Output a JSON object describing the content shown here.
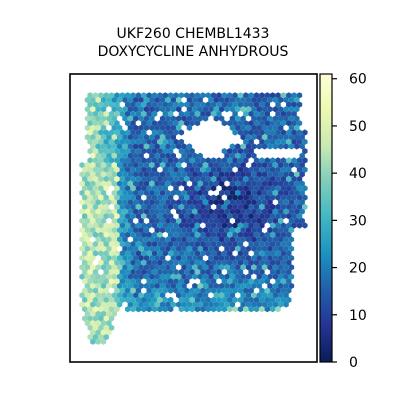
{
  "chart_data": {
    "type": "heatmap",
    "title_lines": [
      "UKF260 CHEMBL1433",
      "DOXYCYCLINE ANHYDROUS"
    ],
    "colorbar": {
      "colormap": "YlGnBu_r",
      "vmin": 0,
      "vmax": 61,
      "ticks": [
        0,
        10,
        20,
        30,
        40,
        50,
        60
      ],
      "tick_labels": [
        "0",
        "10",
        "20",
        "30",
        "40",
        "50",
        "60"
      ],
      "colors": [
        "#081d58",
        "#253494",
        "#225ea8",
        "#1d91c0",
        "#41b6c4",
        "#7fcdbb",
        "#c7e9b4",
        "#edf8b1",
        "#ffffd9"
      ]
    },
    "spatial_summary": {
      "plot": "hexbin spatial expression map",
      "axes_ticks_visible": false,
      "regions": [
        {
          "region": "main tissue body (upper right)",
          "typical_value": 12
        },
        {
          "region": "center-right dark core",
          "typical_value": 6
        },
        {
          "region": "left margin of main body",
          "typical_value": 24
        },
        {
          "region": "left detached strip",
          "typical_value": 40
        }
      ],
      "gaps": [
        "white hole near top center",
        "small white gap at right edge"
      ]
    }
  }
}
